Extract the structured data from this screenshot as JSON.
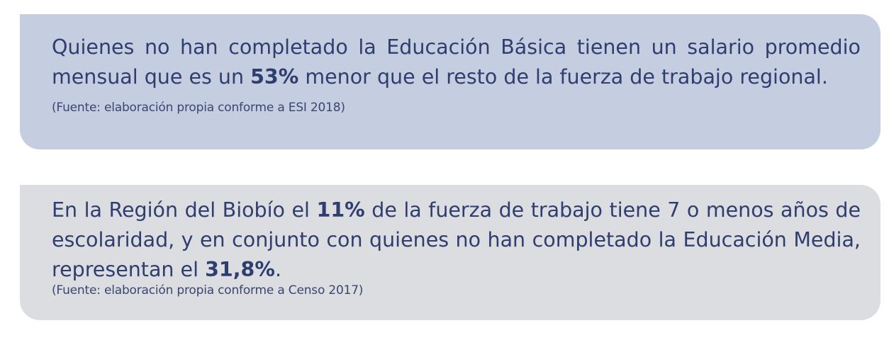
{
  "card1": {
    "text_before": "Quienes no han completado la Educación Básica tienen un salario promedio mensual que es un ",
    "highlight": "53%",
    "text_after": " menor que el resto de la fuerza de trabajo regional.",
    "source": "(Fuente: elaboración propia conforme a ESI 2018)",
    "background": "#c5cee0"
  },
  "card2": {
    "text_before": "En la Región del Biobío el ",
    "highlight1": "11%",
    "text_middle": " de la fuerza de trabajo tiene 7 o menos años de escolaridad, y en conjunto con quienes no han completado la Educación Media, representan el ",
    "highlight2": "31,8%",
    "text_after": ".",
    "source": "(Fuente: elaboración propia conforme a Censo 2017)",
    "background": "#dcdde0"
  },
  "colors": {
    "text": "#2f3e6e"
  }
}
